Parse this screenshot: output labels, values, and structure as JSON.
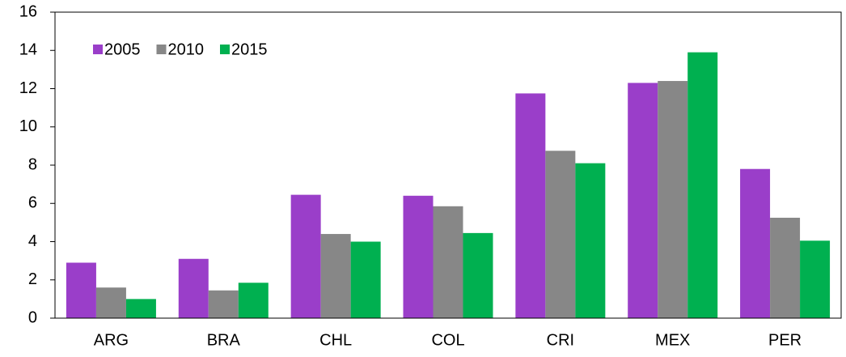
{
  "chart_data": {
    "type": "bar",
    "categories": [
      "ARG",
      "BRA",
      "CHL",
      "COL",
      "CRI",
      "MEX",
      "PER"
    ],
    "series": [
      {
        "name": "2005",
        "color": "#9a3ec9",
        "values": [
          2.9,
          3.1,
          6.45,
          6.4,
          11.75,
          12.3,
          7.8
        ]
      },
      {
        "name": "2010",
        "color": "#878787",
        "values": [
          1.6,
          1.45,
          4.4,
          5.85,
          8.75,
          12.4,
          5.25
        ]
      },
      {
        "name": "2015",
        "color": "#00b050",
        "values": [
          1.0,
          1.85,
          4.0,
          4.45,
          8.1,
          13.9,
          4.05
        ]
      }
    ],
    "ylim": [
      0,
      16
    ],
    "yticks": [
      0,
      2,
      4,
      6,
      8,
      10,
      12,
      14,
      16
    ],
    "grid": false,
    "legend": "top-left"
  }
}
